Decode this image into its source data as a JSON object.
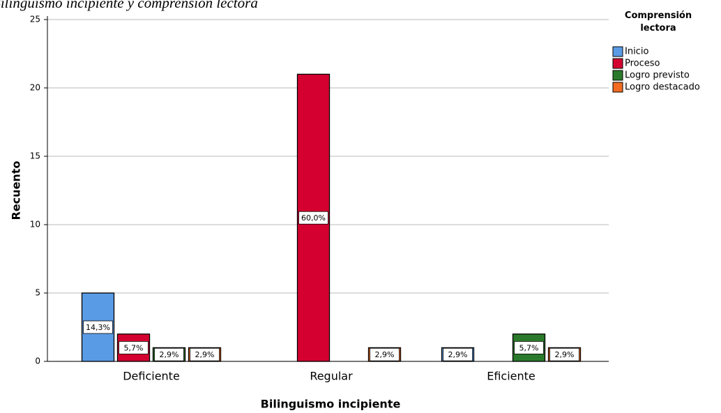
{
  "chart_data": {
    "type": "bar",
    "title": "Bilinguismo incipiente y comprensión lectora",
    "x_label": "Bilinguismo incipiente",
    "y_label": "Recuento",
    "legend_title": "Comprensión lectora",
    "categories": [
      "Deficiente",
      "Regular",
      "Eficiente"
    ],
    "series": [
      {
        "name": "Inicio",
        "color": "#5a9be6",
        "values": [
          5,
          null,
          1
        ],
        "value_labels": [
          "14,3%",
          null,
          "2,9%"
        ]
      },
      {
        "name": "Proceso",
        "color": "#d4002f",
        "values": [
          2,
          21,
          null
        ],
        "value_labels": [
          "5,7%",
          "60,0%",
          null
        ]
      },
      {
        "name": "Logro previsto",
        "color": "#2b7a2b",
        "values": [
          1,
          null,
          2
        ],
        "value_labels": [
          "2,9%",
          null,
          "5,7%"
        ]
      },
      {
        "name": "Logro destacado",
        "color": "#f26b21",
        "values": [
          1,
          1,
          1
        ],
        "value_labels": [
          "2,9%",
          "2,9%",
          "2,9%"
        ]
      }
    ],
    "ylim": [
      0,
      25
    ],
    "yticks": [
      0,
      5,
      10,
      15,
      20,
      25
    ],
    "grid": true,
    "legend": "right"
  }
}
